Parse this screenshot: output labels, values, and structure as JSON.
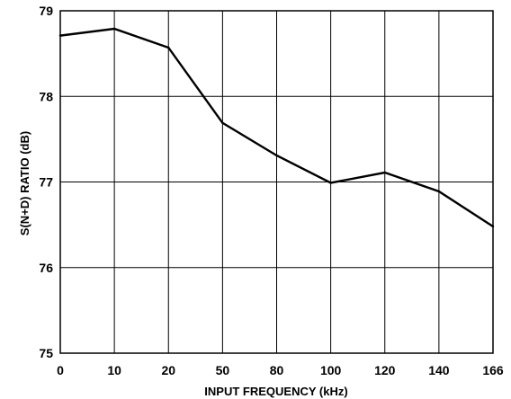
{
  "chart_data": {
    "type": "line",
    "title": "",
    "xlabel": "INPUT FREQUENCY (kHz)",
    "ylabel": "S(N+D) RATIO (dB)",
    "categories": [
      "0",
      "10",
      "20",
      "50",
      "80",
      "100",
      "120",
      "140",
      "166"
    ],
    "y_ticks": [
      "75",
      "76",
      "77",
      "78",
      "79"
    ],
    "ylim": [
      75,
      79
    ],
    "grid": true,
    "series": [
      {
        "values": [
          78.71,
          78.79,
          78.57,
          77.69,
          77.31,
          76.99,
          77.11,
          76.89,
          76.48
        ]
      }
    ]
  }
}
